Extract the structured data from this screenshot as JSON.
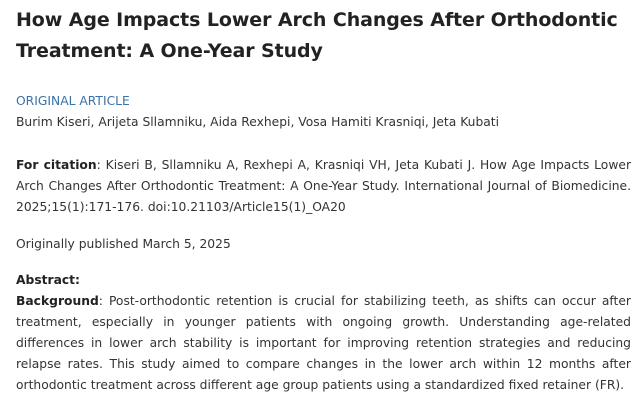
{
  "article": {
    "title": "How Age Impacts Lower Arch Changes After Orthodontic Treatment: A One-Year Study",
    "section_type": "ORIGINAL ARTICLE",
    "authors": "Burim Kiseri, Arijeta Sllamniku, Aida Rexhepi, Vosa Hamiti Krasniqi, Jeta Kubati",
    "citation_label": "For citation",
    "citation_text": ": Kiseri B, Sllamniku A, Rexhepi A, Krasniqi VH, Jeta Kubati J. How Age Impacts Lower Arch Changes After Orthodontic Treatment: A One-Year Study. International Journal of Biomedicine. 2025;15(1):171-176. doi:10.21103/Article15(1)_OA20",
    "published": "Originally published March 5, 2025",
    "abstract_label": "Abstract:",
    "background_label": "Background",
    "background_text": ": Post-orthodontic retention is crucial for stabilizing teeth, as shifts can occur after treatment, especially in younger patients with ongoing growth. Understanding age-related differences in lower arch stability is important for improving retention strategies and reducing relapse rates. This study aimed to compare changes in the lower arch within 12 months after orthodontic treatment across different age group patients using a standardized fixed retainer (FR)."
  }
}
